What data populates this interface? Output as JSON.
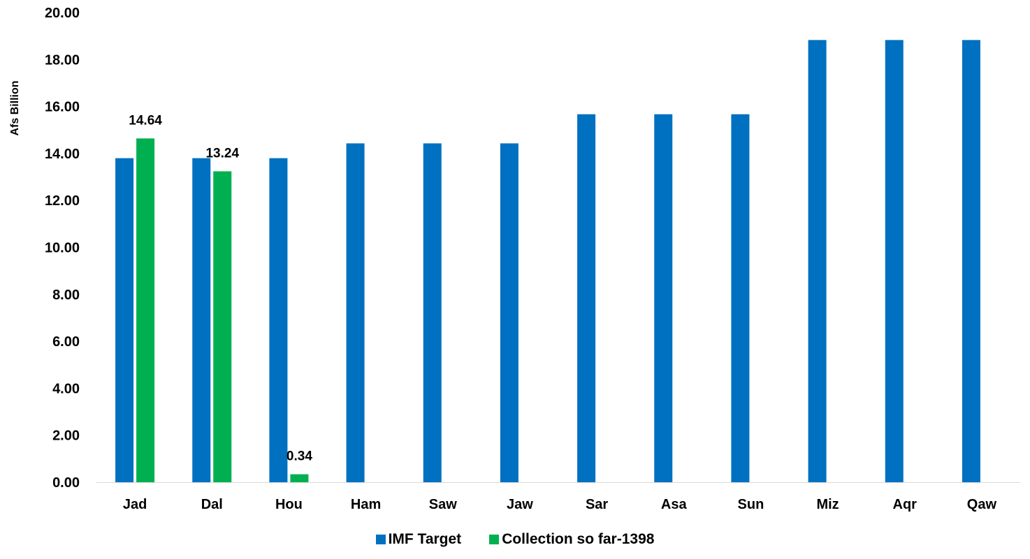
{
  "chart_data": {
    "type": "bar",
    "title": "",
    "xlabel": "",
    "ylabel": "Afs Billion",
    "ylim": [
      0,
      20
    ],
    "ytick_step": 2,
    "ytick_labels": [
      "0.00",
      "2.00",
      "4.00",
      "6.00",
      "8.00",
      "10.00",
      "12.00",
      "14.00",
      "16.00",
      "18.00",
      "20.00"
    ],
    "grid": false,
    "legend_position": "bottom",
    "categories": [
      "Jad",
      "Dal",
      "Hou",
      "Ham",
      "Saw",
      "Jaw",
      "Sar",
      "Asa",
      "Sun",
      "Miz",
      "Aqr",
      "Qaw"
    ],
    "series": [
      {
        "name": "IMF Target",
        "color": "#0070C0",
        "values": [
          13.8,
          13.8,
          13.8,
          14.43,
          14.43,
          14.43,
          15.67,
          15.67,
          15.67,
          18.83,
          18.83,
          18.83
        ]
      },
      {
        "name": "Collection so far-1398",
        "color": "#00B050",
        "values": [
          14.64,
          13.24,
          0.34,
          null,
          null,
          null,
          null,
          null,
          null,
          null,
          null,
          null
        ],
        "data_labels": [
          "14.64",
          "13.24",
          "0.34",
          null,
          null,
          null,
          null,
          null,
          null,
          null,
          null,
          null
        ]
      }
    ]
  }
}
